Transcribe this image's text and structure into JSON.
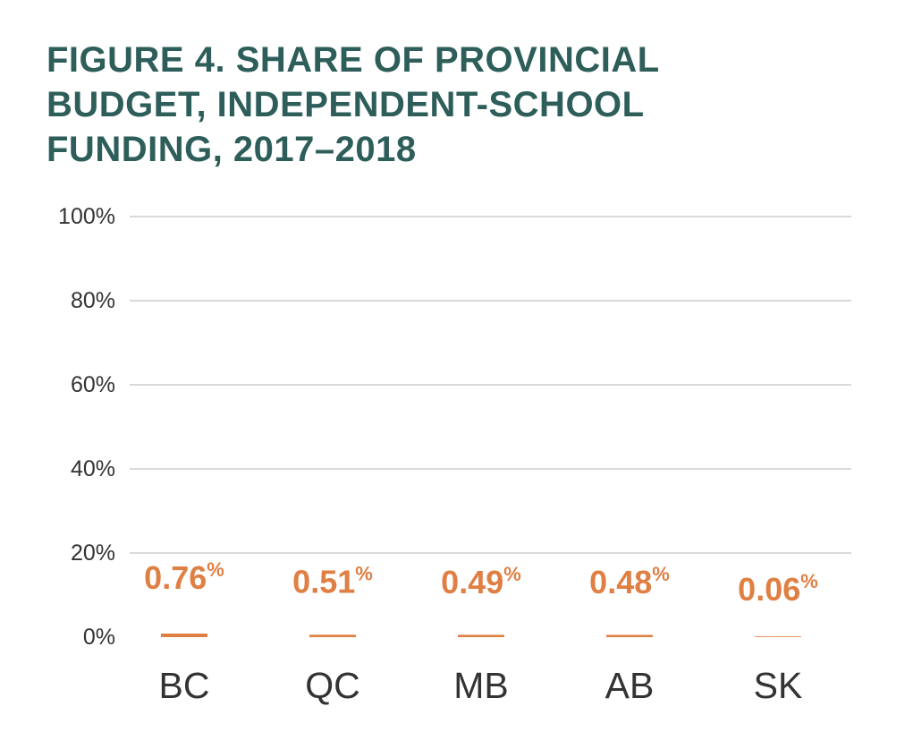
{
  "title_lines": [
    "FIGURE 4. SHARE OF PROVINCIAL",
    "BUDGET, INDEPENDENT-SCHOOL",
    "FUNDING, 2017–2018"
  ],
  "colors": {
    "title": "#2e5e5a",
    "bar": "#e07f43",
    "grid": "#d9d9d9",
    "text": "#333333"
  },
  "chart_data": {
    "type": "bar",
    "categories": [
      "BC",
      "QC",
      "MB",
      "AB",
      "SK"
    ],
    "values": [
      0.76,
      0.51,
      0.49,
      0.48,
      0.06
    ],
    "value_labels": [
      "0.76",
      "0.51",
      "0.49",
      "0.48",
      "0.06"
    ],
    "value_suffix": "%",
    "ylim": [
      0,
      100
    ],
    "yticks": [
      "0%",
      "20%",
      "40%",
      "60%",
      "80%",
      "100%"
    ],
    "ytick_values": [
      0,
      20,
      40,
      60,
      80,
      100
    ],
    "grid": true,
    "legend": "none"
  }
}
